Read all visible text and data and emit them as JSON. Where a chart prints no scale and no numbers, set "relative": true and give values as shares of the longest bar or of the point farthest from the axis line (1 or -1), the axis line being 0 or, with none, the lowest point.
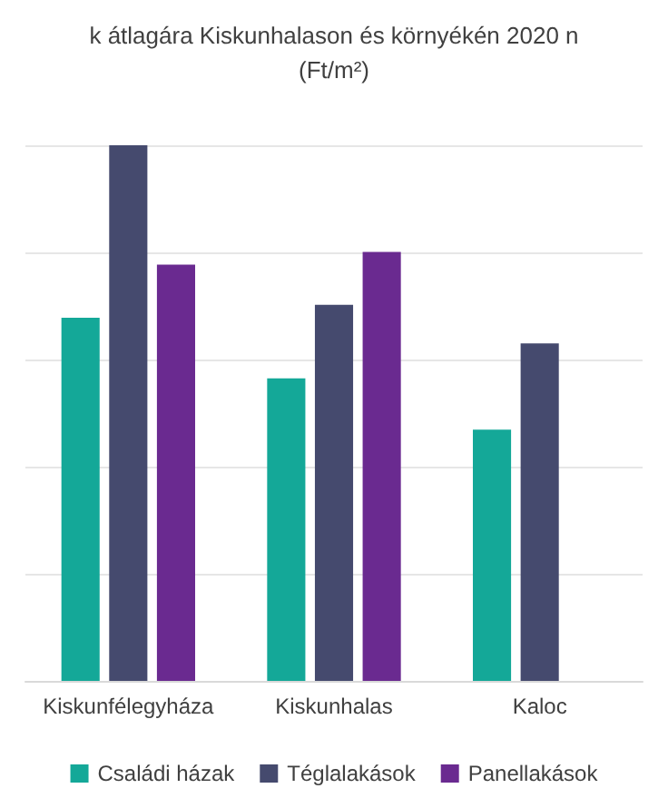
{
  "chart_data": {
    "type": "bar",
    "title": "k átlagára Kiskunhalason és környékén 2020 n",
    "subtitle": "(Ft/m²)",
    "categories": [
      "Kiskunfélegyháza",
      "Kiskunhalas",
      "Kaloc"
    ],
    "relative": true,
    "grid": "y",
    "legend": "bottom",
    "series": [
      {
        "name": "Családi házak",
        "color": "#14a898",
        "values": [
          0.678,
          0.565,
          0.469
        ]
      },
      {
        "name": "Téglalakások",
        "color": "#454a6e",
        "values": [
          1,
          0.702,
          0.63
        ]
      },
      {
        "name": "Panellakások",
        "color": "#6a2a90",
        "values": [
          0.777,
          0.801,
          null
        ]
      }
    ]
  }
}
